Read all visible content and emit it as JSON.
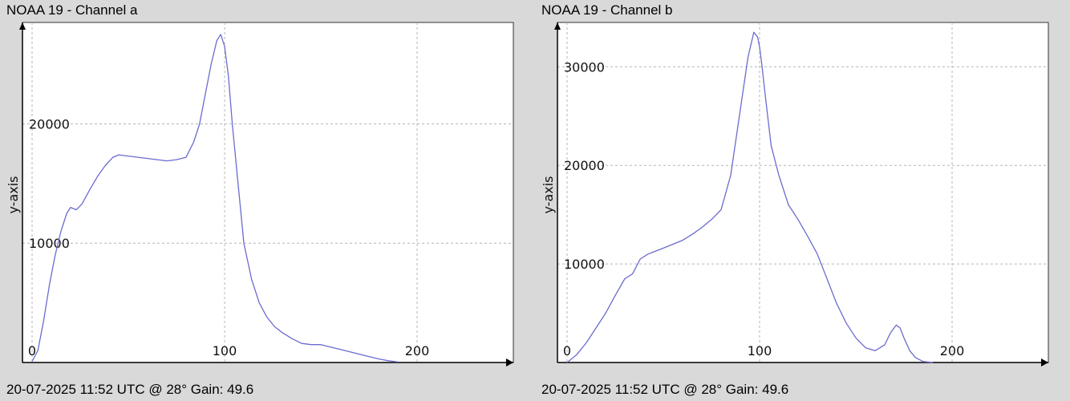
{
  "colors": {
    "background": "#d9d9d9",
    "plot_bg": "#ffffff",
    "grid": "#b5b5b5",
    "line": "#6b6bd0",
    "axis": "#000000"
  },
  "chart_data": [
    {
      "type": "line",
      "title": "NOAA 19 - Channel a",
      "footer": "20-07-2025 11:52 UTC @ 28° Gain: 49.6",
      "ylabel": "y-axis",
      "xlabel": "",
      "xlim": [
        -5,
        250
      ],
      "ylim": [
        0,
        28500
      ],
      "x_ticks": [
        0,
        100,
        200
      ],
      "x_tick_labels": [
        "0",
        "100",
        "200"
      ],
      "y_ticks": [
        10000,
        20000
      ],
      "y_tick_labels": [
        "10000",
        "20000"
      ],
      "grid": true,
      "series": [
        {
          "x": [
            0,
            3,
            6,
            9,
            12,
            15,
            18,
            20,
            23,
            26,
            30,
            34,
            38,
            42,
            45,
            50,
            55,
            60,
            65,
            70,
            75,
            80,
            84,
            87,
            90,
            93,
            96,
            98,
            100,
            102,
            104,
            107,
            110,
            114,
            118,
            122,
            126,
            130,
            135,
            140,
            145,
            150,
            155,
            160,
            165,
            170,
            175,
            180,
            185,
            190
          ],
          "y": [
            100,
            1000,
            3500,
            6500,
            9000,
            11000,
            12500,
            13000,
            12800,
            13300,
            14500,
            15600,
            16500,
            17200,
            17400,
            17300,
            17200,
            17100,
            17000,
            16900,
            17000,
            17200,
            18500,
            20000,
            22500,
            25000,
            27000,
            27500,
            26500,
            24000,
            20000,
            15000,
            10000,
            7000,
            5000,
            3800,
            3000,
            2500,
            2000,
            1600,
            1500,
            1500,
            1300,
            1100,
            900,
            700,
            500,
            300,
            150,
            50
          ]
        }
      ]
    },
    {
      "type": "line",
      "title": "NOAA 19 - Channel b",
      "footer": "20-07-2025 11:52 UTC @ 28° Gain: 49.6",
      "ylabel": "y-axis",
      "xlabel": "",
      "xlim": [
        -5,
        250
      ],
      "ylim": [
        0,
        34500
      ],
      "x_ticks": [
        0,
        100,
        200
      ],
      "x_tick_labels": [
        "0",
        "100",
        "200"
      ],
      "y_ticks": [
        10000,
        20000,
        30000
      ],
      "y_tick_labels": [
        "10000",
        "20000",
        "30000"
      ],
      "grid": true,
      "series": [
        {
          "x": [
            0,
            5,
            10,
            15,
            20,
            25,
            30,
            34,
            38,
            42,
            46,
            50,
            55,
            60,
            65,
            70,
            75,
            80,
            85,
            88,
            91,
            94,
            97,
            99,
            100,
            101,
            103,
            106,
            110,
            115,
            120,
            125,
            130,
            135,
            140,
            145,
            150,
            155,
            160,
            165,
            168,
            171,
            173,
            175,
            178,
            181,
            185,
            190
          ],
          "y": [
            0,
            800,
            2000,
            3500,
            5000,
            6800,
            8500,
            9000,
            10500,
            11000,
            11300,
            11600,
            12000,
            12400,
            13000,
            13700,
            14500,
            15500,
            19000,
            23000,
            27000,
            31000,
            33500,
            33000,
            32000,
            30500,
            27000,
            22000,
            19000,
            16000,
            14500,
            12800,
            11000,
            8500,
            6000,
            4000,
            2500,
            1500,
            1200,
            1800,
            3000,
            3800,
            3500,
            2500,
            1200,
            500,
            100,
            0
          ]
        }
      ]
    }
  ]
}
